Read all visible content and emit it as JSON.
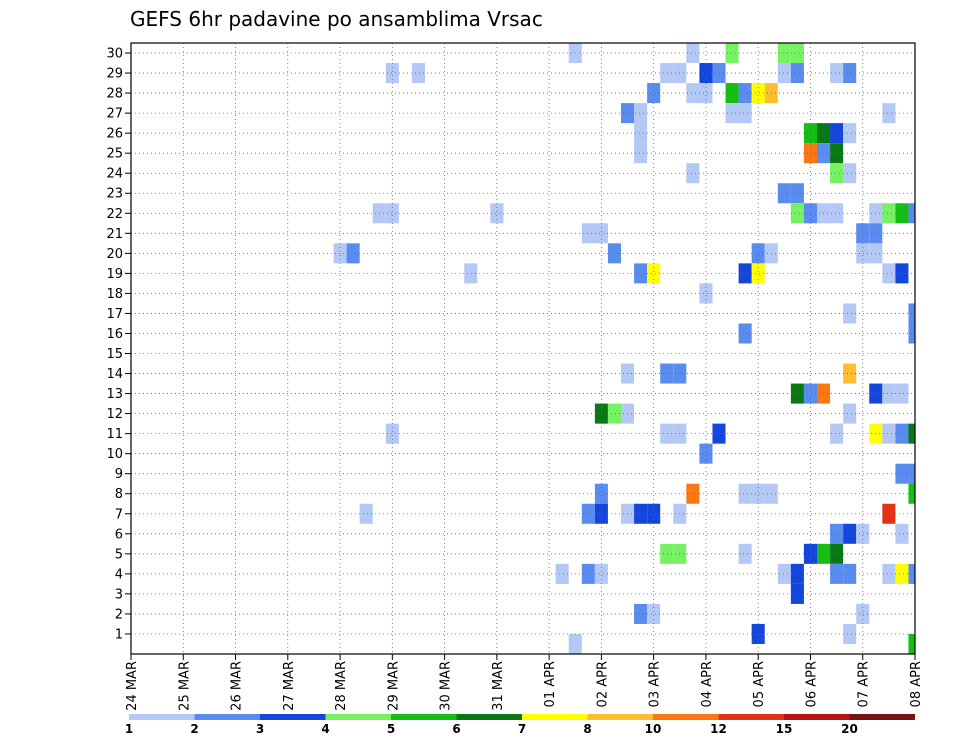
{
  "chart_data": {
    "type": "heatmap",
    "title": "GEFS 6hr padavine po ansamblima Vrsac",
    "y_ticks": [
      "1",
      "2",
      "3",
      "4",
      "5",
      "6",
      "7",
      "8",
      "9",
      "10",
      "11",
      "12",
      "13",
      "14",
      "15",
      "16",
      "17",
      "18",
      "19",
      "20",
      "21",
      "22",
      "23",
      "24",
      "25",
      "26",
      "27",
      "28",
      "29",
      "30"
    ],
    "x_ticks": [
      "24 MAR",
      "25 MAR",
      "26 MAR",
      "27 MAR",
      "28 MAR",
      "29 MAR",
      "30 MAR",
      "31 MAR",
      "01 APR",
      "02 APR",
      "03 APR",
      "04 APR",
      "05 APR",
      "06 APR",
      "07 APR",
      "08 APR"
    ],
    "x_axis": "6-hour steps from 24 MAR 00Z (0..60)",
    "y_axis": "ensemble member (1..30)",
    "grid": true,
    "colorbar": {
      "ticks": [
        "1",
        "2",
        "3",
        "4",
        "5",
        "6",
        "7",
        "8",
        "10",
        "12",
        "15",
        "20"
      ],
      "colors": [
        "#b4c8f5",
        "#5a8cf0",
        "#1446dc",
        "#78f064",
        "#14be14",
        "#0a7814",
        "#ffff00",
        "#ffbe32",
        "#fa7814",
        "#e63214",
        "#b41414",
        "#781414"
      ]
    },
    "cells": [
      {
        "x": 34,
        "y": 30,
        "c": 0
      },
      {
        "x": 43,
        "y": 30,
        "c": 0
      },
      {
        "x": 46,
        "y": 30,
        "c": 3
      },
      {
        "x": 50,
        "y": 30,
        "c": 3
      },
      {
        "x": 51,
        "y": 30,
        "c": 3
      },
      {
        "x": 20,
        "y": 29,
        "c": 0
      },
      {
        "x": 22,
        "y": 29,
        "c": 0
      },
      {
        "x": 41,
        "y": 29,
        "c": 0
      },
      {
        "x": 42,
        "y": 29,
        "c": 0
      },
      {
        "x": 44,
        "y": 29,
        "c": 2
      },
      {
        "x": 45,
        "y": 29,
        "c": 1
      },
      {
        "x": 50,
        "y": 29,
        "c": 0
      },
      {
        "x": 51,
        "y": 29,
        "c": 1
      },
      {
        "x": 54,
        "y": 29,
        "c": 0
      },
      {
        "x": 55,
        "y": 29,
        "c": 1
      },
      {
        "x": 40,
        "y": 28,
        "c": 1
      },
      {
        "x": 43,
        "y": 28,
        "c": 0
      },
      {
        "x": 44,
        "y": 28,
        "c": 0
      },
      {
        "x": 46,
        "y": 28,
        "c": 4
      },
      {
        "x": 47,
        "y": 28,
        "c": 1
      },
      {
        "x": 48,
        "y": 28,
        "c": 6
      },
      {
        "x": 49,
        "y": 28,
        "c": 7
      },
      {
        "x": 38,
        "y": 27,
        "c": 1
      },
      {
        "x": 39,
        "y": 27,
        "c": 0
      },
      {
        "x": 46,
        "y": 27,
        "c": 0
      },
      {
        "x": 47,
        "y": 27,
        "c": 0
      },
      {
        "x": 58,
        "y": 27,
        "c": 0
      },
      {
        "x": 39,
        "y": 26,
        "c": 0
      },
      {
        "x": 52,
        "y": 26,
        "c": 4
      },
      {
        "x": 53,
        "y": 26,
        "c": 5
      },
      {
        "x": 54,
        "y": 26,
        "c": 2
      },
      {
        "x": 55,
        "y": 26,
        "c": 0
      },
      {
        "x": 39,
        "y": 25,
        "c": 0
      },
      {
        "x": 52,
        "y": 25,
        "c": 8
      },
      {
        "x": 53,
        "y": 25,
        "c": 1
      },
      {
        "x": 54,
        "y": 25,
        "c": 5
      },
      {
        "x": 43,
        "y": 24,
        "c": 0
      },
      {
        "x": 54,
        "y": 24,
        "c": 3
      },
      {
        "x": 55,
        "y": 24,
        "c": 0
      },
      {
        "x": 50,
        "y": 23,
        "c": 1
      },
      {
        "x": 51,
        "y": 23,
        "c": 1
      },
      {
        "x": 19,
        "y": 22,
        "c": 0
      },
      {
        "x": 20,
        "y": 22,
        "c": 0
      },
      {
        "x": 28,
        "y": 22,
        "c": 0
      },
      {
        "x": 51,
        "y": 22,
        "c": 3
      },
      {
        "x": 52,
        "y": 22,
        "c": 1
      },
      {
        "x": 53,
        "y": 22,
        "c": 0
      },
      {
        "x": 54,
        "y": 22,
        "c": 0
      },
      {
        "x": 57,
        "y": 22,
        "c": 0
      },
      {
        "x": 58,
        "y": 22,
        "c": 3
      },
      {
        "x": 59,
        "y": 22,
        "c": 4
      },
      {
        "x": 60,
        "y": 22,
        "c": 1
      },
      {
        "x": 35,
        "y": 21,
        "c": 0
      },
      {
        "x": 36,
        "y": 21,
        "c": 0
      },
      {
        "x": 56,
        "y": 21,
        "c": 1
      },
      {
        "x": 57,
        "y": 21,
        "c": 1
      },
      {
        "x": 16,
        "y": 20,
        "c": 0
      },
      {
        "x": 17,
        "y": 20,
        "c": 1
      },
      {
        "x": 37,
        "y": 20,
        "c": 1
      },
      {
        "x": 48,
        "y": 20,
        "c": 1
      },
      {
        "x": 49,
        "y": 20,
        "c": 0
      },
      {
        "x": 56,
        "y": 20,
        "c": 0
      },
      {
        "x": 57,
        "y": 20,
        "c": 0
      },
      {
        "x": 26,
        "y": 19,
        "c": 0
      },
      {
        "x": 39,
        "y": 19,
        "c": 1
      },
      {
        "x": 40,
        "y": 19,
        "c": 6
      },
      {
        "x": 47,
        "y": 19,
        "c": 2
      },
      {
        "x": 48,
        "y": 19,
        "c": 6
      },
      {
        "x": 58,
        "y": 19,
        "c": 0
      },
      {
        "x": 59,
        "y": 19,
        "c": 2
      },
      {
        "x": 44,
        "y": 18,
        "c": 0
      },
      {
        "x": 55,
        "y": 17,
        "c": 0
      },
      {
        "x": 60,
        "y": 17,
        "c": 1
      },
      {
        "x": 47,
        "y": 16,
        "c": 1
      },
      {
        "x": 60,
        "y": 16,
        "c": 1
      },
      {
        "x": 38,
        "y": 14,
        "c": 0
      },
      {
        "x": 41,
        "y": 14,
        "c": 1
      },
      {
        "x": 42,
        "y": 14,
        "c": 1
      },
      {
        "x": 55,
        "y": 14,
        "c": 7
      },
      {
        "x": 51,
        "y": 13,
        "c": 5
      },
      {
        "x": 52,
        "y": 13,
        "c": 1
      },
      {
        "x": 53,
        "y": 13,
        "c": 8
      },
      {
        "x": 57,
        "y": 13,
        "c": 2
      },
      {
        "x": 58,
        "y": 13,
        "c": 0
      },
      {
        "x": 59,
        "y": 13,
        "c": 0
      },
      {
        "x": 36,
        "y": 12,
        "c": 5
      },
      {
        "x": 37,
        "y": 12,
        "c": 3
      },
      {
        "x": 38,
        "y": 12,
        "c": 0
      },
      {
        "x": 55,
        "y": 12,
        "c": 0
      },
      {
        "x": 20,
        "y": 11,
        "c": 0
      },
      {
        "x": 41,
        "y": 11,
        "c": 0
      },
      {
        "x": 42,
        "y": 11,
        "c": 0
      },
      {
        "x": 45,
        "y": 11,
        "c": 2
      },
      {
        "x": 54,
        "y": 11,
        "c": 0
      },
      {
        "x": 57,
        "y": 11,
        "c": 6
      },
      {
        "x": 58,
        "y": 11,
        "c": 0
      },
      {
        "x": 59,
        "y": 11,
        "c": 1
      },
      {
        "x": 60,
        "y": 11,
        "c": 5
      },
      {
        "x": 44,
        "y": 10,
        "c": 1
      },
      {
        "x": 59,
        "y": 9,
        "c": 1
      },
      {
        "x": 60,
        "y": 9,
        "c": 1
      },
      {
        "x": 36,
        "y": 8,
        "c": 1
      },
      {
        "x": 43,
        "y": 8,
        "c": 8
      },
      {
        "x": 47,
        "y": 8,
        "c": 0
      },
      {
        "x": 48,
        "y": 8,
        "c": 0
      },
      {
        "x": 49,
        "y": 8,
        "c": 0
      },
      {
        "x": 60,
        "y": 8,
        "c": 4
      },
      {
        "x": 18,
        "y": 7,
        "c": 0
      },
      {
        "x": 35,
        "y": 7,
        "c": 1
      },
      {
        "x": 36,
        "y": 7,
        "c": 2
      },
      {
        "x": 38,
        "y": 7,
        "c": 0
      },
      {
        "x": 39,
        "y": 7,
        "c": 2
      },
      {
        "x": 40,
        "y": 7,
        "c": 2
      },
      {
        "x": 42,
        "y": 7,
        "c": 0
      },
      {
        "x": 58,
        "y": 7,
        "c": 9
      },
      {
        "x": 54,
        "y": 6,
        "c": 1
      },
      {
        "x": 55,
        "y": 6,
        "c": 2
      },
      {
        "x": 56,
        "y": 6,
        "c": 0
      },
      {
        "x": 59,
        "y": 6,
        "c": 0
      },
      {
        "x": 41,
        "y": 5,
        "c": 3
      },
      {
        "x": 42,
        "y": 5,
        "c": 3
      },
      {
        "x": 47,
        "y": 5,
        "c": 0
      },
      {
        "x": 52,
        "y": 5,
        "c": 2
      },
      {
        "x": 53,
        "y": 5,
        "c": 4
      },
      {
        "x": 54,
        "y": 5,
        "c": 5
      },
      {
        "x": 33,
        "y": 4,
        "c": 0
      },
      {
        "x": 35,
        "y": 4,
        "c": 1
      },
      {
        "x": 36,
        "y": 4,
        "c": 0
      },
      {
        "x": 50,
        "y": 4,
        "c": 0
      },
      {
        "x": 51,
        "y": 4,
        "c": 2
      },
      {
        "x": 54,
        "y": 4,
        "c": 1
      },
      {
        "x": 55,
        "y": 4,
        "c": 1
      },
      {
        "x": 58,
        "y": 4,
        "c": 0
      },
      {
        "x": 59,
        "y": 4,
        "c": 6
      },
      {
        "x": 60,
        "y": 4,
        "c": 1
      },
      {
        "x": 51,
        "y": 3,
        "c": 2
      },
      {
        "x": 39,
        "y": 2,
        "c": 1
      },
      {
        "x": 40,
        "y": 2,
        "c": 0
      },
      {
        "x": 56,
        "y": 2,
        "c": 0
      },
      {
        "x": 48,
        "y": 1,
        "c": 2
      },
      {
        "x": 55,
        "y": 1,
        "c": 0
      },
      {
        "x": 34,
        "y": 0.5,
        "c": 0
      },
      {
        "x": 60,
        "y": 0.5,
        "c": 4
      }
    ]
  }
}
